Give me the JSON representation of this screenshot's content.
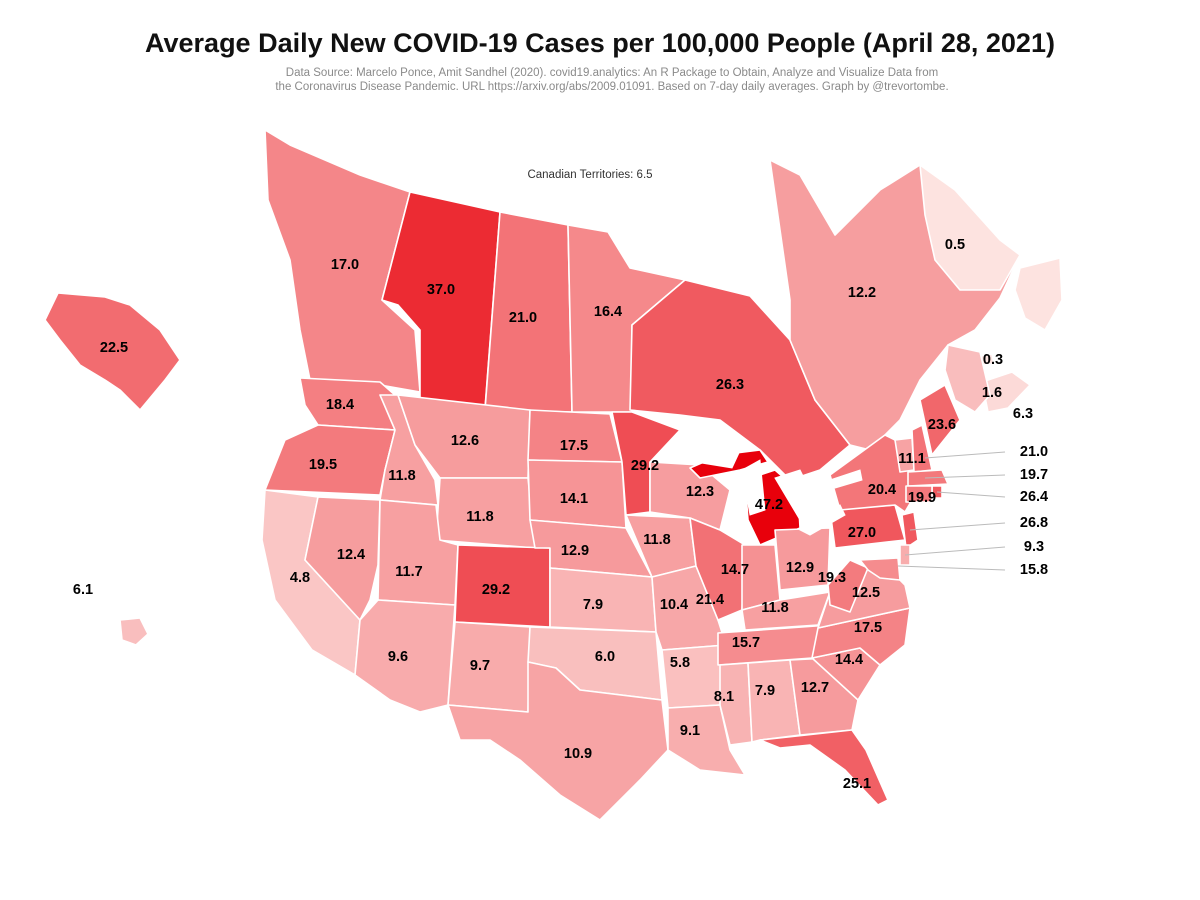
{
  "title": "Average Daily New COVID-19 Cases per 100,000 People (April 28, 2021)",
  "source_line1": "Data Source: Marcelo Ponce, Amit Sandhel (2020). covid19.analytics: An R Package to Obtain, Analyze and Visualize Data from",
  "source_line2": "the Coronavirus Disease Pandemic. URL https://arxiv.org/abs/2009.01091. Based on 7-day daily averages. Graph by @trevortombe.",
  "territories_note": "Canadian Territories: 6.5",
  "colors": {
    "max": "#e8000b",
    "min": "#fde5e2",
    "border": "#ffffff"
  },
  "map_data": {
    "type": "choropleth",
    "metric": "Average daily new cases per 100,000 (7-day average)",
    "regions": [
      {
        "id": "bc",
        "name": "British Columbia",
        "value": 17.0,
        "label": "17.0"
      },
      {
        "id": "ab",
        "name": "Alberta",
        "value": 37.0,
        "label": "37.0"
      },
      {
        "id": "sk",
        "name": "Saskatchewan",
        "value": 21.0,
        "label": "21.0"
      },
      {
        "id": "mb",
        "name": "Manitoba",
        "value": 16.4,
        "label": "16.4"
      },
      {
        "id": "on",
        "name": "Ontario",
        "value": 26.3,
        "label": "26.3"
      },
      {
        "id": "qc",
        "name": "Quebec",
        "value": 12.2,
        "label": "12.2"
      },
      {
        "id": "nl",
        "name": "Newfoundland and Labrador",
        "value": 0.5,
        "label": "0.5"
      },
      {
        "id": "pe",
        "name": "Prince Edward Island",
        "value": 0.3,
        "label": "0.3"
      },
      {
        "id": "ns",
        "name": "Nova Scotia",
        "value": 1.6,
        "label": "1.6"
      },
      {
        "id": "nb",
        "name": "New Brunswick",
        "value": 6.3,
        "label": "6.3"
      },
      {
        "id": "ak",
        "name": "Alaska",
        "value": 22.5,
        "label": "22.5"
      },
      {
        "id": "hi",
        "name": "Hawaii",
        "value": 6.1,
        "label": "6.1"
      },
      {
        "id": "wa",
        "name": "Washington",
        "value": 18.4,
        "label": "18.4"
      },
      {
        "id": "or",
        "name": "Oregon",
        "value": 19.5,
        "label": "19.5"
      },
      {
        "id": "ca",
        "name": "California",
        "value": 4.8,
        "label": "4.8"
      },
      {
        "id": "id",
        "name": "Idaho",
        "value": 11.8,
        "label": "11.8"
      },
      {
        "id": "nv",
        "name": "Nevada",
        "value": 12.4,
        "label": "12.4"
      },
      {
        "id": "mt",
        "name": "Montana",
        "value": 12.6,
        "label": "12.6"
      },
      {
        "id": "wy",
        "name": "Wyoming",
        "value": 11.8,
        "label": "11.8"
      },
      {
        "id": "ut",
        "name": "Utah",
        "value": 11.7,
        "label": "11.7"
      },
      {
        "id": "co",
        "name": "Colorado",
        "value": 29.2,
        "label": "29.2"
      },
      {
        "id": "az",
        "name": "Arizona",
        "value": 9.6,
        "label": "9.6"
      },
      {
        "id": "nm",
        "name": "New Mexico",
        "value": 9.7,
        "label": "9.7"
      },
      {
        "id": "nd",
        "name": "North Dakota",
        "value": 17.5,
        "label": "17.5"
      },
      {
        "id": "sd",
        "name": "South Dakota",
        "value": 14.1,
        "label": "14.1"
      },
      {
        "id": "ne",
        "name": "Nebraska",
        "value": 12.9,
        "label": "12.9"
      },
      {
        "id": "ks",
        "name": "Kansas",
        "value": 7.9,
        "label": "7.9"
      },
      {
        "id": "ok",
        "name": "Oklahoma",
        "value": 6.0,
        "label": "6.0"
      },
      {
        "id": "tx",
        "name": "Texas",
        "value": 10.9,
        "label": "10.9"
      },
      {
        "id": "mn",
        "name": "Minnesota",
        "value": 29.2,
        "label": "29.2"
      },
      {
        "id": "ia",
        "name": "Iowa",
        "value": 11.8,
        "label": "11.8"
      },
      {
        "id": "mo",
        "name": "Missouri",
        "value": 10.4,
        "label": "10.4"
      },
      {
        "id": "ar",
        "name": "Arkansas",
        "value": 5.8,
        "label": "5.8"
      },
      {
        "id": "la",
        "name": "Louisiana",
        "value": 9.1,
        "label": "9.1"
      },
      {
        "id": "wi",
        "name": "Wisconsin",
        "value": 12.3,
        "label": "12.3"
      },
      {
        "id": "il",
        "name": "Illinois",
        "value": 21.4,
        "label": "21.4"
      },
      {
        "id": "mi",
        "name": "Michigan",
        "value": 47.2,
        "label": "47.2"
      },
      {
        "id": "in",
        "name": "Indiana",
        "value": 14.7,
        "label": "14.7"
      },
      {
        "id": "oh",
        "name": "Ohio",
        "value": 12.9,
        "label": "12.9"
      },
      {
        "id": "ky",
        "name": "Kentucky",
        "value": 11.8,
        "label": "11.8"
      },
      {
        "id": "tn",
        "name": "Tennessee",
        "value": 15.7,
        "label": "15.7"
      },
      {
        "id": "ms",
        "name": "Mississippi",
        "value": 8.1,
        "label": "8.1"
      },
      {
        "id": "al",
        "name": "Alabama",
        "value": 7.9,
        "label": "7.9"
      },
      {
        "id": "ga",
        "name": "Georgia",
        "value": 12.7,
        "label": "12.7"
      },
      {
        "id": "fl",
        "name": "Florida",
        "value": 25.1,
        "label": "25.1"
      },
      {
        "id": "sc",
        "name": "South Carolina",
        "value": 14.4,
        "label": "14.4"
      },
      {
        "id": "nc",
        "name": "North Carolina",
        "value": 17.5,
        "label": "17.5"
      },
      {
        "id": "va",
        "name": "Virginia",
        "value": 12.5,
        "label": "12.5"
      },
      {
        "id": "wv",
        "name": "West Virginia",
        "value": 19.3,
        "label": "19.3"
      },
      {
        "id": "pa",
        "name": "Pennsylvania",
        "value": 27.0,
        "label": "27.0"
      },
      {
        "id": "ny",
        "name": "New York",
        "value": 20.4,
        "label": "20.4"
      },
      {
        "id": "vt",
        "name": "Vermont",
        "value": 11.1,
        "label": "11.1"
      },
      {
        "id": "me",
        "name": "Maine",
        "value": 23.6,
        "label": "23.6"
      },
      {
        "id": "nh",
        "name": "New Hampshire",
        "value": 21.0,
        "label": "21.0"
      },
      {
        "id": "ma",
        "name": "Massachusetts",
        "value": 19.7,
        "label": "19.7"
      },
      {
        "id": "ri",
        "name": "Rhode Island",
        "value": 26.4,
        "label": "26.4"
      },
      {
        "id": "ct",
        "name": "Connecticut",
        "value": 19.9,
        "label": "19.9"
      },
      {
        "id": "nj",
        "name": "New Jersey",
        "value": 26.8,
        "label": "26.8"
      },
      {
        "id": "de",
        "name": "Delaware",
        "value": 9.3,
        "label": "9.3"
      },
      {
        "id": "md",
        "name": "Maryland",
        "value": 15.8,
        "label": "15.8"
      }
    ]
  }
}
